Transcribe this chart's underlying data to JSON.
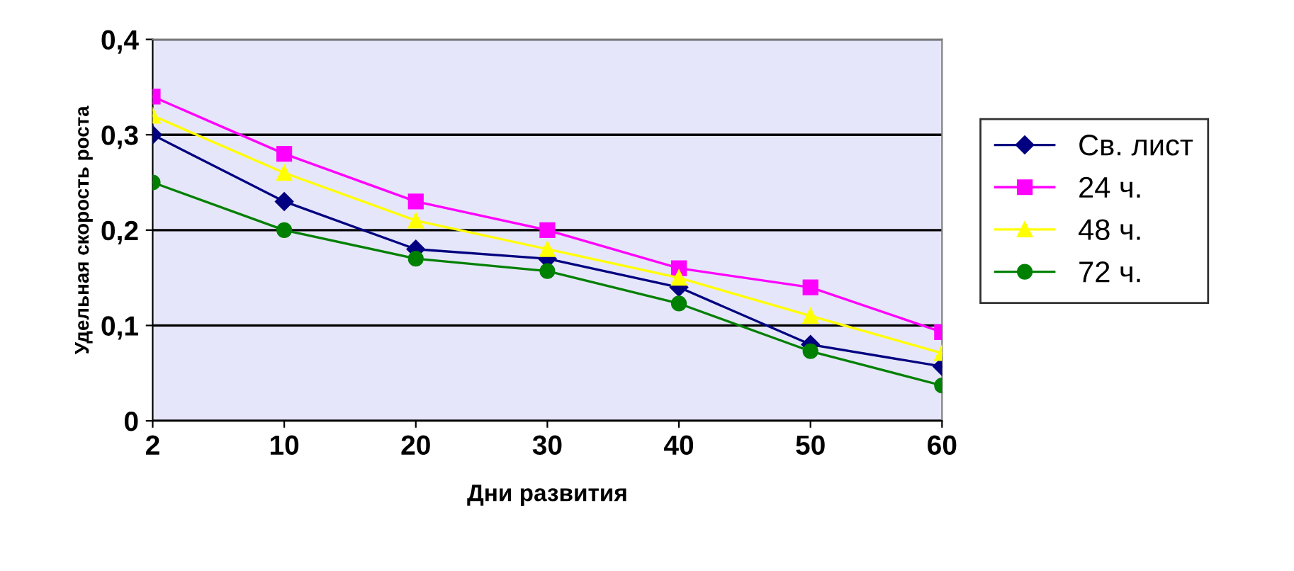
{
  "chart_data": {
    "type": "line",
    "xlabel": "Дни развития",
    "ylabel": "Удельная скорость роста",
    "categories": [
      "2",
      "10",
      "20",
      "30",
      "40",
      "50",
      "60"
    ],
    "series": [
      {
        "name": "Св. лист",
        "color": "#000080",
        "marker": "diamond",
        "values": [
          0.3,
          0.23,
          0.18,
          0.17,
          0.14,
          0.08,
          0.057
        ]
      },
      {
        "name": "24 ч.",
        "color": "#ff00ff",
        "marker": "square",
        "values": [
          0.34,
          0.28,
          0.23,
          0.2,
          0.16,
          0.14,
          0.093
        ]
      },
      {
        "name": "48 ч.",
        "color": "#ffff00",
        "marker": "triangle",
        "values": [
          0.32,
          0.26,
          0.21,
          0.18,
          0.15,
          0.11,
          0.071
        ]
      },
      {
        "name": "72 ч.",
        "color": "#008000",
        "marker": "circle",
        "values": [
          0.25,
          0.2,
          0.17,
          0.157,
          0.123,
          0.073,
          0.037
        ]
      }
    ],
    "ylim": [
      0,
      0.4
    ],
    "yticks": [
      {
        "value": 0,
        "label": "0"
      },
      {
        "value": 0.1,
        "label": "0,1"
      },
      {
        "value": 0.2,
        "label": "0,2"
      },
      {
        "value": 0.3,
        "label": "0,3"
      },
      {
        "value": 0.4,
        "label": "0,4"
      }
    ],
    "grid": "y",
    "legend": "right"
  }
}
